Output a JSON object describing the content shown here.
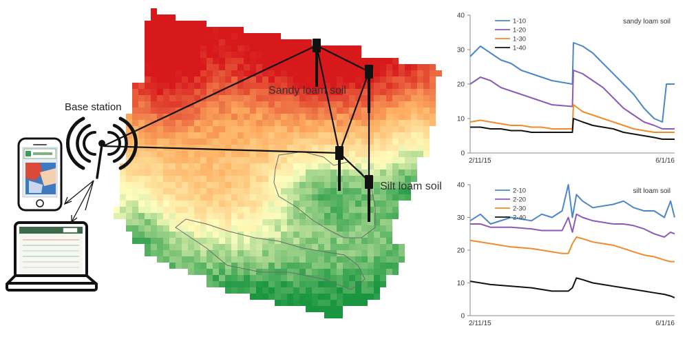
{
  "diagram": {
    "base_station_label": "Base station",
    "zone_labels": [
      "Sandy loam soil",
      "Silt loam soil"
    ],
    "icons": [
      "smartphone-icon",
      "laptop-icon",
      "antenna-icon",
      "sensor-node-icon"
    ]
  },
  "colors": {
    "dry_red": "#d7191c",
    "mid_orange": "#fdae61",
    "mid_yellow": "#ffffbf",
    "wet_green": "#1a9641",
    "series_10": "#4a86c8",
    "series_20": "#8a5ab8",
    "series_30": "#f08a2a",
    "series_40": "#111111"
  },
  "chart_data": [
    {
      "type": "line",
      "title": "sandy loam soil",
      "xlabel": "",
      "ylabel": "",
      "ylim": [
        0,
        40
      ],
      "yticks": [
        "0",
        "10",
        "20",
        "30",
        "40"
      ],
      "x_tick_labels": [
        "2/11/15",
        "6/1/16"
      ],
      "legend_position": "top-left",
      "grid": false,
      "x": [
        0,
        0.05,
        0.1,
        0.15,
        0.2,
        0.25,
        0.3,
        0.35,
        0.4,
        0.5,
        0.505,
        0.55,
        0.6,
        0.65,
        0.7,
        0.75,
        0.8,
        0.85,
        0.9,
        0.94,
        0.96,
        1.0
      ],
      "series": [
        {
          "name": "1-10",
          "values": [
            28,
            31,
            29,
            27,
            26,
            24,
            23,
            22,
            21,
            20,
            32,
            31,
            29,
            26,
            23,
            20,
            17,
            13,
            10,
            9,
            20,
            20
          ]
        },
        {
          "name": "1-20",
          "values": [
            20,
            22,
            21,
            19,
            18,
            17,
            16,
            15,
            14,
            13.5,
            24,
            23,
            21,
            19,
            16,
            13,
            11,
            9,
            8,
            7,
            7,
            7
          ]
        },
        {
          "name": "1-30",
          "values": [
            9,
            9.5,
            9,
            8.5,
            8,
            8,
            7.5,
            7.5,
            7,
            7,
            14,
            12,
            11,
            10,
            9,
            8,
            7,
            6.5,
            6,
            6,
            6,
            6
          ]
        },
        {
          "name": "1-40",
          "values": [
            7.5,
            7.5,
            7,
            7,
            6.5,
            6.5,
            6,
            6,
            6,
            6,
            10,
            9,
            8,
            7.5,
            7,
            6,
            5.5,
            5,
            4.5,
            4,
            4,
            4
          ]
        }
      ]
    },
    {
      "type": "line",
      "title": "silt loam soil",
      "xlabel": "",
      "ylabel": "",
      "ylim": [
        0,
        40
      ],
      "yticks": [
        "0",
        "10",
        "20",
        "30",
        "40"
      ],
      "x_tick_labels": [
        "2/11/15",
        "6/1/16"
      ],
      "legend_position": "top-left",
      "grid": false,
      "x": [
        0,
        0.05,
        0.1,
        0.2,
        0.3,
        0.35,
        0.4,
        0.45,
        0.48,
        0.5,
        0.52,
        0.55,
        0.6,
        0.7,
        0.75,
        0.8,
        0.85,
        0.9,
        0.95,
        0.98,
        1.0
      ],
      "series": [
        {
          "name": "2-10",
          "values": [
            29,
            31,
            28,
            30,
            29,
            31,
            30,
            32,
            40,
            30,
            37,
            35,
            33,
            34,
            35,
            33,
            32,
            32,
            30,
            35,
            30
          ]
        },
        {
          "name": "2-20",
          "values": [
            28,
            28,
            27,
            27,
            26.5,
            26,
            26,
            26,
            30,
            25.5,
            31,
            30,
            29,
            28,
            28,
            27.5,
            26.5,
            25,
            24,
            25.5,
            25
          ]
        },
        {
          "name": "2-30",
          "values": [
            23,
            22.5,
            22,
            21,
            20.5,
            20,
            19.5,
            19,
            19,
            22,
            24,
            23.5,
            22.5,
            21.5,
            20.5,
            19.5,
            18.5,
            18,
            17,
            16.5,
            16.5
          ]
        },
        {
          "name": "2-40",
          "values": [
            10.5,
            10,
            9.5,
            9,
            8.5,
            8,
            7.5,
            7.5,
            7.5,
            8.5,
            11.5,
            11,
            10,
            9,
            8.5,
            8,
            7.5,
            7,
            6.5,
            6,
            5.5
          ]
        }
      ]
    }
  ]
}
